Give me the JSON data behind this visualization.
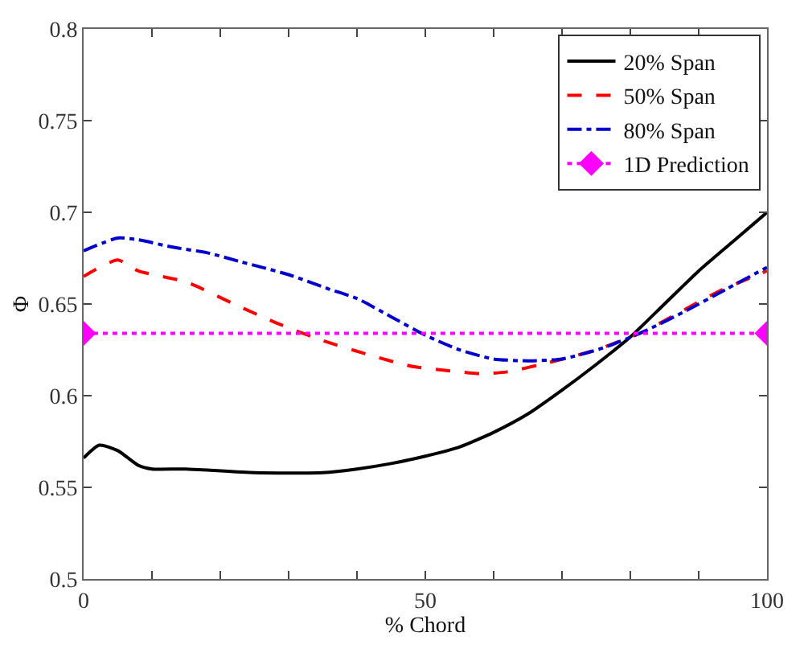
{
  "chart_data": {
    "type": "line",
    "xlabel": "% Chord",
    "ylabel": "Φ",
    "xlim": [
      0,
      100
    ],
    "ylim": [
      0.5,
      0.8
    ],
    "xticks": [
      0,
      {
        "value": 10,
        "label": null
      },
      {
        "value": 20,
        "label": null
      },
      {
        "value": 30,
        "label": null
      },
      {
        "value": 40,
        "label": null
      },
      50,
      {
        "value": 60,
        "label": null
      },
      {
        "value": 70,
        "label": null
      },
      {
        "value": 80,
        "label": null
      },
      {
        "value": 90,
        "label": null
      },
      100
    ],
    "yticks": [
      0.5,
      0.55,
      0.6,
      0.65,
      0.7,
      0.75,
      0.8
    ],
    "legend": "top right",
    "series": [
      {
        "name": "20% Span",
        "color": "#000000",
        "line_style": "solid",
        "marker": "none",
        "x": [
          0,
          2.3,
          5,
          8,
          10,
          15,
          25,
          35,
          40,
          45,
          50,
          55,
          60,
          65,
          70,
          75,
          80,
          85,
          90,
          95,
          100
        ],
        "values": [
          0.566,
          0.573,
          0.57,
          0.562,
          0.56,
          0.56,
          0.558,
          0.558,
          0.56,
          0.563,
          0.567,
          0.572,
          0.58,
          0.59,
          0.603,
          0.617,
          0.632,
          0.65,
          0.668,
          0.684,
          0.7
        ]
      },
      {
        "name": "50% Span",
        "color": "#ff0000",
        "line_style": "dashed",
        "marker": "none",
        "x": [
          0,
          5,
          8,
          15,
          22,
          28,
          35,
          42,
          48,
          55,
          58,
          62,
          68,
          75,
          82,
          87,
          93,
          100
        ],
        "values": [
          0.665,
          0.674,
          0.668,
          0.662,
          0.65,
          0.64,
          0.63,
          0.622,
          0.616,
          0.613,
          0.612,
          0.613,
          0.618,
          0.625,
          0.635,
          0.645,
          0.657,
          0.668
        ]
      },
      {
        "name": "80% Span",
        "color": "#0000cc",
        "line_style": "dashdot",
        "marker": "none",
        "x": [
          0,
          5,
          8,
          13,
          18,
          23,
          30,
          36,
          40,
          45,
          50,
          55,
          60,
          65,
          70,
          76,
          82,
          88,
          94,
          100
        ],
        "values": [
          0.679,
          0.686,
          0.685,
          0.681,
          0.678,
          0.673,
          0.666,
          0.658,
          0.653,
          0.643,
          0.633,
          0.625,
          0.62,
          0.619,
          0.62,
          0.626,
          0.635,
          0.646,
          0.658,
          0.67
        ]
      },
      {
        "name": "1D Prediction",
        "color": "#ff00ff",
        "line_style": "dotted",
        "marker": "diamond",
        "x": [
          0,
          100
        ],
        "values": [
          0.634,
          0.634
        ]
      }
    ]
  }
}
